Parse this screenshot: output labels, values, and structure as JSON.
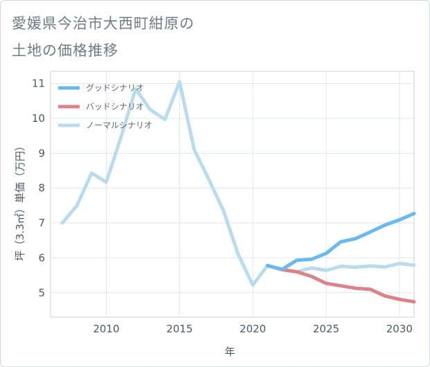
{
  "title_lines": [
    "愛媛県今治市大西町紺原の",
    "土地の価格推移"
  ],
  "chart_data": {
    "type": "line",
    "title": "愛媛県今治市大西町紺原の土地の価格推移",
    "xlabel": "年",
    "ylabel": "坪（3.3㎡）単価（万円）",
    "xlim": [
      2006.2,
      2031
    ],
    "ylim": [
      4.3,
      11.35
    ],
    "x_ticks": [
      2010,
      2015,
      2020,
      2025,
      2030
    ],
    "y_ticks": [
      5,
      6,
      7,
      8,
      9,
      10,
      11
    ],
    "grid": true,
    "legend_position": "top-left",
    "series": [
      {
        "name": "グッドシナリオ",
        "color": "#6bb8ea",
        "x": [
          2021,
          2022,
          2023,
          2024,
          2025,
          2026,
          2027,
          2028,
          2029,
          2030,
          2031
        ],
        "y": [
          5.78,
          5.67,
          5.93,
          5.96,
          6.13,
          6.46,
          6.55,
          6.74,
          6.94,
          7.09,
          7.27
        ]
      },
      {
        "name": "バッドシナリオ",
        "color": "#d9848b",
        "x": [
          2021,
          2022,
          2023,
          2024,
          2025,
          2026,
          2027,
          2028,
          2029,
          2030,
          2031
        ],
        "y": [
          5.78,
          5.66,
          5.6,
          5.47,
          5.27,
          5.2,
          5.13,
          5.1,
          4.91,
          4.81,
          4.74
        ]
      },
      {
        "name": "ノーマルシナリオ",
        "color": "#b9dcec",
        "x": [
          2007,
          2008,
          2009,
          2010,
          2011,
          2012,
          2013,
          2014,
          2015,
          2016,
          2017,
          2018,
          2019,
          2020,
          2021,
          2022,
          2023,
          2024,
          2025,
          2026,
          2027,
          2028,
          2029,
          2030,
          2031
        ],
        "y": [
          7.0,
          7.5,
          8.43,
          8.17,
          9.45,
          10.85,
          10.25,
          9.97,
          11.05,
          9.1,
          8.25,
          7.35,
          6.1,
          5.22,
          5.78,
          5.67,
          5.6,
          5.71,
          5.64,
          5.76,
          5.73,
          5.77,
          5.74,
          5.84,
          5.79
        ]
      }
    ]
  }
}
